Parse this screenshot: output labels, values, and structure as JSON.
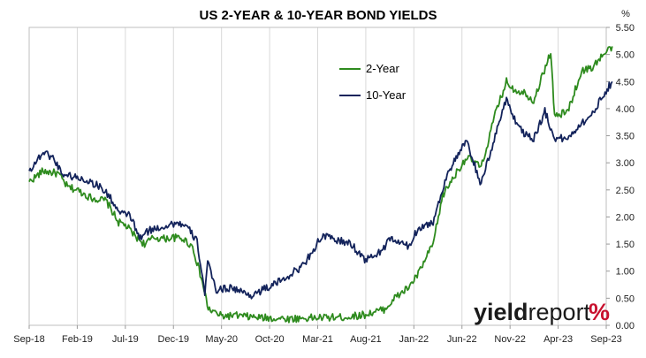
{
  "chart_data": {
    "type": "line",
    "title": "US 2-YEAR & 10-YEAR BOND YIELDS",
    "ylabel": "%",
    "xlabel": "",
    "ylim": [
      0.0,
      5.5
    ],
    "y_ticks": [
      "0.00",
      "0.50",
      "1.00",
      "1.50",
      "2.00",
      "2.50",
      "3.00",
      "3.50",
      "4.00",
      "4.50",
      "5.00",
      "5.50"
    ],
    "x_ticks": [
      "Sep-18",
      "Feb-19",
      "Jul-19",
      "Dec-19",
      "May-20",
      "Oct-20",
      "Mar-21",
      "Aug-21",
      "Jan-22",
      "Jun-22",
      "Nov-22",
      "Apr-23",
      "Sep-23"
    ],
    "x_range": [
      "2018-09",
      "2023-09"
    ],
    "grid": "vertical gridlines at x ticks",
    "legend": "upper-right inside plot",
    "series": [
      {
        "name": "2-Year",
        "color": "#2e8b1e",
        "points": [
          [
            "2018-09-01",
            2.65
          ],
          [
            "2018-10-15",
            2.85
          ],
          [
            "2018-12-01",
            2.8
          ],
          [
            "2019-01-01",
            2.55
          ],
          [
            "2019-02-01",
            2.5
          ],
          [
            "2019-03-15",
            2.35
          ],
          [
            "2019-05-01",
            2.3
          ],
          [
            "2019-06-10",
            1.9
          ],
          [
            "2019-07-01",
            1.85
          ],
          [
            "2019-08-01",
            1.65
          ],
          [
            "2019-09-01",
            1.5
          ],
          [
            "2019-10-01",
            1.62
          ],
          [
            "2019-11-01",
            1.6
          ],
          [
            "2019-12-01",
            1.62
          ],
          [
            "2020-01-01",
            1.6
          ],
          [
            "2020-02-01",
            1.45
          ],
          [
            "2020-03-01",
            0.8
          ],
          [
            "2020-03-20",
            0.3
          ],
          [
            "2020-05-01",
            0.17
          ],
          [
            "2020-06-15",
            0.18
          ],
          [
            "2020-09-01",
            0.14
          ],
          [
            "2020-12-01",
            0.12
          ],
          [
            "2021-03-01",
            0.14
          ],
          [
            "2021-06-01",
            0.15
          ],
          [
            "2021-08-01",
            0.2
          ],
          [
            "2021-10-01",
            0.3
          ],
          [
            "2021-11-01",
            0.5
          ],
          [
            "2021-12-15",
            0.7
          ],
          [
            "2022-01-15",
            0.95
          ],
          [
            "2022-03-01",
            1.5
          ],
          [
            "2022-04-01",
            2.4
          ],
          [
            "2022-05-01",
            2.7
          ],
          [
            "2022-06-15",
            3.1
          ],
          [
            "2022-07-15",
            3.0
          ],
          [
            "2022-08-01",
            2.9
          ],
          [
            "2022-09-15",
            3.9
          ],
          [
            "2022-10-20",
            4.5
          ],
          [
            "2022-11-15",
            4.35
          ],
          [
            "2022-12-15",
            4.3
          ],
          [
            "2023-01-15",
            4.15
          ],
          [
            "2023-03-08",
            5.05
          ],
          [
            "2023-03-20",
            3.85
          ],
          [
            "2023-05-01",
            3.95
          ],
          [
            "2023-06-15",
            4.7
          ],
          [
            "2023-07-15",
            4.75
          ],
          [
            "2023-08-15",
            4.95
          ],
          [
            "2023-09-20",
            5.15
          ]
        ]
      },
      {
        "name": "10-Year",
        "color": "#13235b",
        "points": [
          [
            "2018-09-01",
            2.85
          ],
          [
            "2018-10-15",
            3.2
          ],
          [
            "2018-11-15",
            3.1
          ],
          [
            "2018-12-15",
            2.8
          ],
          [
            "2019-01-15",
            2.75
          ],
          [
            "2019-03-01",
            2.68
          ],
          [
            "2019-04-15",
            2.55
          ],
          [
            "2019-05-15",
            2.35
          ],
          [
            "2019-06-15",
            2.05
          ],
          [
            "2019-07-15",
            2.05
          ],
          [
            "2019-08-15",
            1.6
          ],
          [
            "2019-09-15",
            1.75
          ],
          [
            "2019-10-15",
            1.8
          ],
          [
            "2019-11-15",
            1.85
          ],
          [
            "2019-12-15",
            1.9
          ],
          [
            "2020-01-15",
            1.8
          ],
          [
            "2020-02-15",
            1.55
          ],
          [
            "2020-03-09",
            0.6
          ],
          [
            "2020-03-18",
            1.15
          ],
          [
            "2020-04-15",
            0.65
          ],
          [
            "2020-06-01",
            0.7
          ],
          [
            "2020-08-01",
            0.55
          ],
          [
            "2020-10-15",
            0.75
          ],
          [
            "2020-12-01",
            0.92
          ],
          [
            "2021-01-15",
            1.1
          ],
          [
            "2021-03-15",
            1.65
          ],
          [
            "2021-04-15",
            1.6
          ],
          [
            "2021-06-15",
            1.5
          ],
          [
            "2021-08-01",
            1.2
          ],
          [
            "2021-09-15",
            1.35
          ],
          [
            "2021-10-20",
            1.6
          ],
          [
            "2021-12-15",
            1.45
          ],
          [
            "2022-01-15",
            1.8
          ],
          [
            "2022-03-01",
            1.9
          ],
          [
            "2022-04-15",
            2.8
          ],
          [
            "2022-05-10",
            3.05
          ],
          [
            "2022-06-15",
            3.4
          ],
          [
            "2022-08-01",
            2.6
          ],
          [
            "2022-09-15",
            3.5
          ],
          [
            "2022-10-20",
            4.2
          ],
          [
            "2022-11-15",
            3.8
          ],
          [
            "2022-12-15",
            3.55
          ],
          [
            "2023-01-15",
            3.45
          ],
          [
            "2023-02-20",
            3.95
          ],
          [
            "2023-03-20",
            3.45
          ],
          [
            "2023-05-01",
            3.45
          ],
          [
            "2023-06-15",
            3.75
          ],
          [
            "2023-07-15",
            3.85
          ],
          [
            "2023-08-15",
            4.2
          ],
          [
            "2023-09-20",
            4.5
          ]
        ]
      }
    ]
  },
  "brand": {
    "yield": "yield",
    "report": "report",
    "pct": "%"
  }
}
